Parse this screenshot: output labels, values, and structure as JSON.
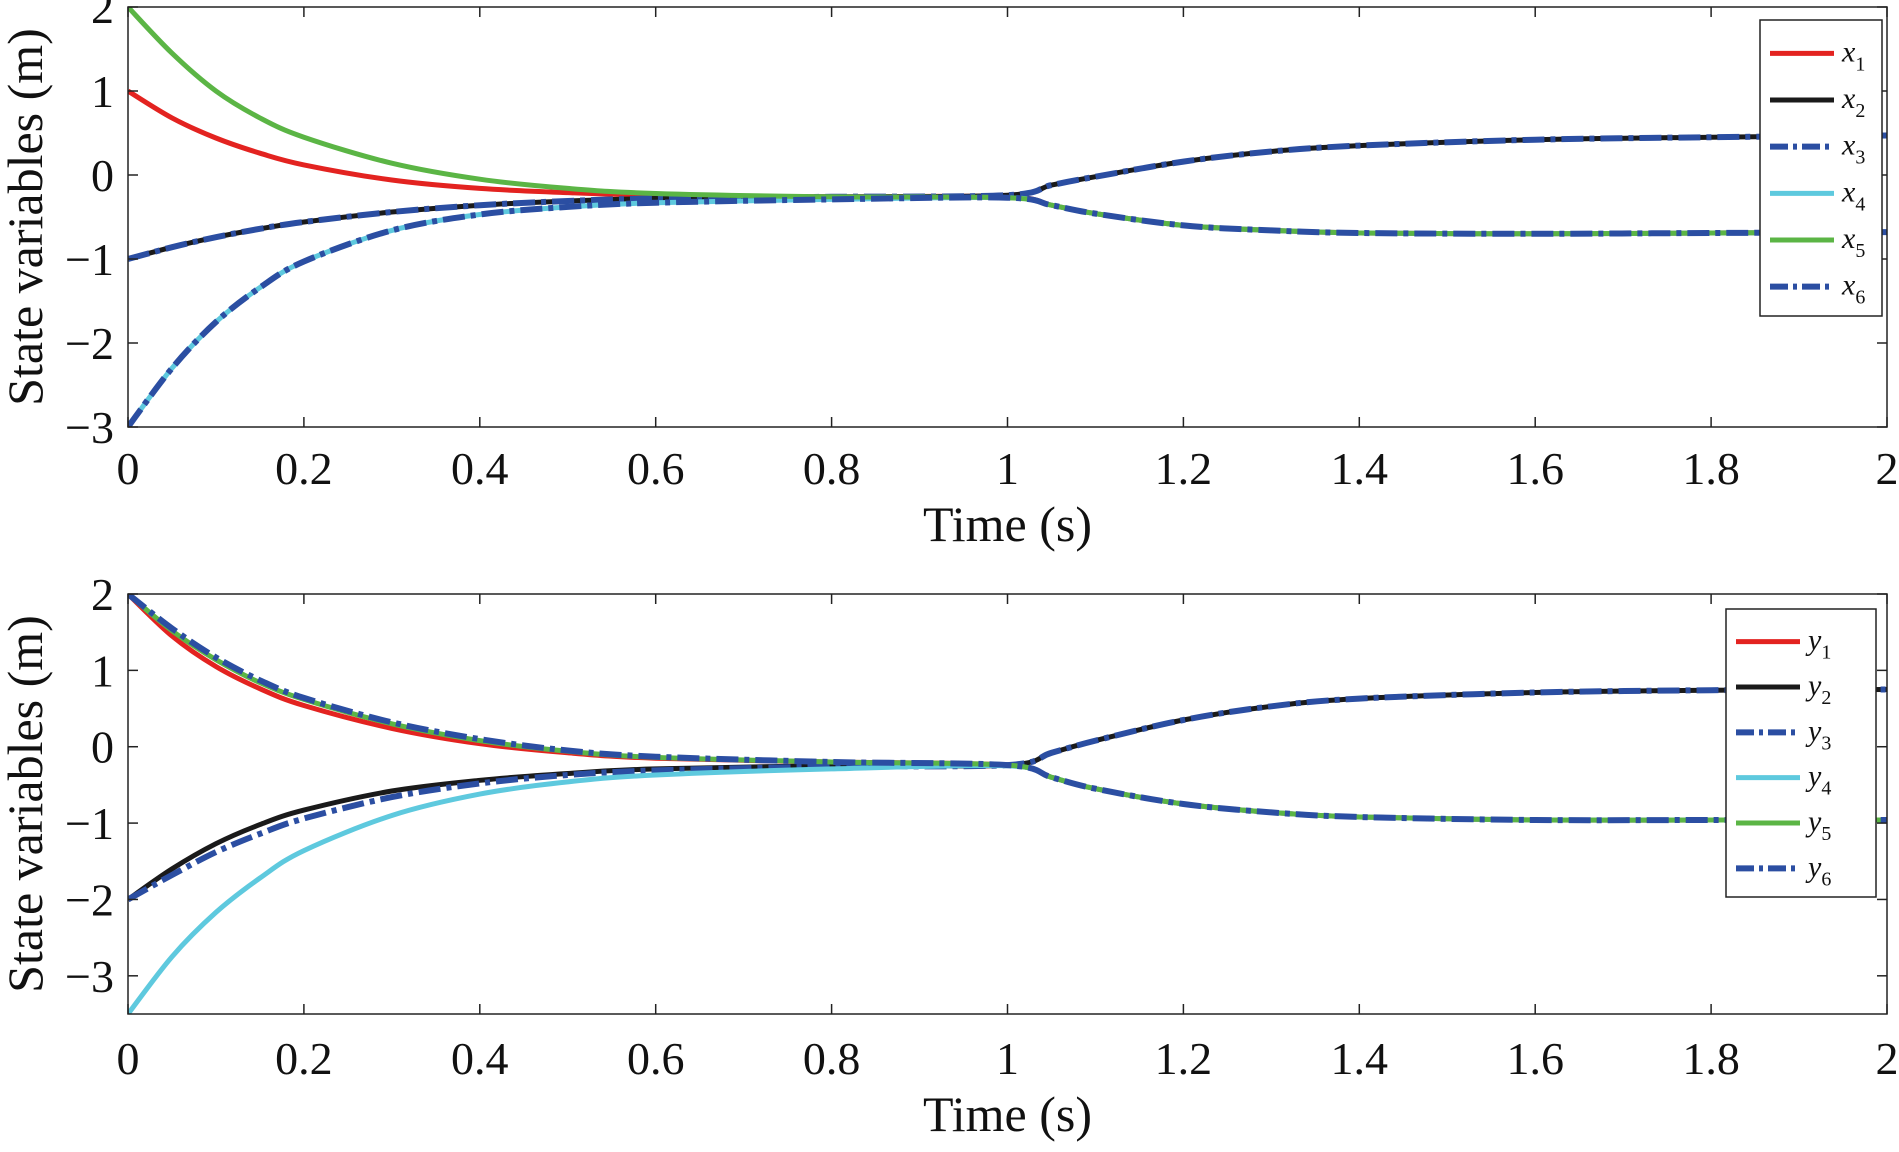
{
  "chart_data": [
    {
      "type": "line",
      "xlabel": "Time (s)",
      "ylabel": "State variables (m)",
      "xlim": [
        0,
        2
      ],
      "ylim": [
        -3,
        2
      ],
      "xticks": [
        "0",
        "0.2",
        "0.4",
        "0.6",
        "0.8",
        "1",
        "1.2",
        "1.4",
        "1.6",
        "1.8",
        "2"
      ],
      "yticks": [
        "2",
        "1",
        "0",
        "−1",
        "−2",
        "−3"
      ],
      "grid": false,
      "legend": "top-right",
      "series": [
        {
          "name": "x",
          "sub": "1",
          "color": "#e32320",
          "style": "solid",
          "x": [
            0,
            0.05,
            0.1,
            0.15,
            0.2,
            0.3,
            0.4,
            0.5,
            0.6,
            0.8,
            1.0,
            1.05,
            1.1,
            1.2,
            1.3,
            1.4,
            1.6,
            1.8,
            2.0
          ],
          "y": [
            1.0,
            0.68,
            0.44,
            0.26,
            0.12,
            -0.06,
            -0.16,
            -0.21,
            -0.24,
            -0.26,
            -0.26,
            -0.36,
            -0.46,
            -0.6,
            -0.66,
            -0.69,
            -0.7,
            -0.69,
            -0.68
          ]
        },
        {
          "name": "x",
          "sub": "2",
          "color": "#1a1a1a",
          "style": "solid",
          "x": [
            0,
            0.05,
            0.1,
            0.15,
            0.2,
            0.3,
            0.4,
            0.5,
            0.6,
            0.8,
            1.0,
            1.05,
            1.1,
            1.2,
            1.3,
            1.4,
            1.6,
            1.8,
            2.0
          ],
          "y": [
            -1.0,
            -0.86,
            -0.74,
            -0.64,
            -0.56,
            -0.44,
            -0.36,
            -0.31,
            -0.28,
            -0.26,
            -0.24,
            -0.12,
            -0.02,
            0.16,
            0.28,
            0.35,
            0.42,
            0.45,
            0.47
          ]
        },
        {
          "name": "x",
          "sub": "3",
          "color": "#2b4ea2",
          "style": "dashdot",
          "x": [
            0,
            0.05,
            0.1,
            0.15,
            0.2,
            0.3,
            0.4,
            0.5,
            0.6,
            0.8,
            1.0,
            1.05,
            1.1,
            1.2,
            1.3,
            1.4,
            1.6,
            1.8,
            2.0
          ],
          "y": [
            -1.0,
            -0.86,
            -0.74,
            -0.64,
            -0.56,
            -0.44,
            -0.36,
            -0.31,
            -0.28,
            -0.26,
            -0.24,
            -0.12,
            -0.02,
            0.16,
            0.28,
            0.35,
            0.42,
            0.45,
            0.47
          ]
        },
        {
          "name": "x",
          "sub": "4",
          "color": "#5ec9de",
          "style": "solid",
          "x": [
            0,
            0.05,
            0.1,
            0.15,
            0.2,
            0.3,
            0.4,
            0.5,
            0.6,
            0.8,
            1.0,
            1.05,
            1.1,
            1.2,
            1.3,
            1.4,
            1.6,
            1.8,
            2.0
          ],
          "y": [
            -3.0,
            -2.3,
            -1.75,
            -1.34,
            -1.03,
            -0.66,
            -0.47,
            -0.38,
            -0.33,
            -0.29,
            -0.27,
            -0.36,
            -0.46,
            -0.6,
            -0.66,
            -0.69,
            -0.7,
            -0.69,
            -0.68
          ]
        },
        {
          "name": "x",
          "sub": "5",
          "color": "#5bb545",
          "style": "solid",
          "x": [
            0,
            0.05,
            0.1,
            0.15,
            0.2,
            0.3,
            0.4,
            0.5,
            0.6,
            0.8,
            1.0,
            1.05,
            1.1,
            1.2,
            1.3,
            1.4,
            1.6,
            1.8,
            2.0
          ],
          "y": [
            2.0,
            1.45,
            1.0,
            0.68,
            0.45,
            0.14,
            -0.05,
            -0.16,
            -0.22,
            -0.26,
            -0.27,
            -0.36,
            -0.46,
            -0.6,
            -0.66,
            -0.69,
            -0.7,
            -0.69,
            -0.68
          ]
        },
        {
          "name": "x",
          "sub": "6",
          "color": "#2b4ea2",
          "style": "dashdot",
          "x": [
            0,
            0.05,
            0.1,
            0.15,
            0.2,
            0.3,
            0.4,
            0.5,
            0.6,
            0.8,
            1.0,
            1.05,
            1.1,
            1.2,
            1.3,
            1.4,
            1.6,
            1.8,
            2.0
          ],
          "y": [
            -3.0,
            -2.3,
            -1.75,
            -1.34,
            -1.03,
            -0.66,
            -0.47,
            -0.38,
            -0.33,
            -0.29,
            -0.27,
            -0.36,
            -0.46,
            -0.6,
            -0.66,
            -0.69,
            -0.7,
            -0.69,
            -0.68
          ]
        }
      ]
    },
    {
      "type": "line",
      "xlabel": "Time (s)",
      "ylabel": "State variables (m)",
      "xlim": [
        0,
        2
      ],
      "ylim": [
        -3.5,
        2
      ],
      "xticks": [
        "0",
        "0.2",
        "0.4",
        "0.6",
        "0.8",
        "1",
        "1.2",
        "1.4",
        "1.6",
        "1.8",
        "2"
      ],
      "yticks": [
        "2",
        "1",
        "0",
        "−1",
        "−2",
        "−3"
      ],
      "ytick_values": [
        2,
        1,
        0,
        -1,
        -2,
        -3
      ],
      "grid": false,
      "legend": "top-right",
      "series": [
        {
          "name": "y",
          "sub": "1",
          "color": "#e32320",
          "style": "solid",
          "x": [
            0,
            0.05,
            0.1,
            0.15,
            0.2,
            0.3,
            0.4,
            0.5,
            0.6,
            0.8,
            1.0,
            1.05,
            1.1,
            1.2,
            1.3,
            1.4,
            1.6,
            1.8,
            2.0
          ],
          "y": [
            2.0,
            1.45,
            1.05,
            0.76,
            0.54,
            0.24,
            0.04,
            -0.08,
            -0.15,
            -0.2,
            -0.24,
            -0.4,
            -0.55,
            -0.75,
            -0.86,
            -0.92,
            -0.96,
            -0.96,
            -0.96
          ]
        },
        {
          "name": "y",
          "sub": "2",
          "color": "#1a1a1a",
          "style": "solid",
          "x": [
            0,
            0.05,
            0.1,
            0.15,
            0.2,
            0.3,
            0.4,
            0.5,
            0.6,
            0.8,
            1.0,
            1.05,
            1.1,
            1.2,
            1.3,
            1.4,
            1.6,
            1.8,
            2.0
          ],
          "y": [
            -2.0,
            -1.6,
            -1.27,
            -1.02,
            -0.83,
            -0.58,
            -0.44,
            -0.35,
            -0.29,
            -0.25,
            -0.24,
            -0.08,
            0.08,
            0.35,
            0.53,
            0.63,
            0.71,
            0.74,
            0.75
          ]
        },
        {
          "name": "y",
          "sub": "3",
          "color": "#2b4ea2",
          "style": "dashdot",
          "x": [
            0,
            0.05,
            0.1,
            0.15,
            0.2,
            0.3,
            0.4,
            0.5,
            0.6,
            0.8,
            1.0,
            1.05,
            1.1,
            1.2,
            1.3,
            1.4,
            1.6,
            1.8,
            2.0
          ],
          "y": [
            -2.0,
            -1.68,
            -1.38,
            -1.14,
            -0.94,
            -0.66,
            -0.48,
            -0.37,
            -0.31,
            -0.26,
            -0.24,
            -0.08,
            0.08,
            0.35,
            0.53,
            0.63,
            0.71,
            0.74,
            0.75
          ]
        },
        {
          "name": "y",
          "sub": "4",
          "color": "#5ec9de",
          "style": "solid",
          "x": [
            0,
            0.05,
            0.1,
            0.15,
            0.2,
            0.3,
            0.4,
            0.5,
            0.6,
            0.8,
            1.0,
            1.05,
            1.1,
            1.2,
            1.3,
            1.4,
            1.6,
            1.8,
            2.0
          ],
          "y": [
            -3.5,
            -2.75,
            -2.17,
            -1.72,
            -1.36,
            -0.9,
            -0.62,
            -0.46,
            -0.37,
            -0.29,
            -0.25,
            -0.4,
            -0.55,
            -0.75,
            -0.86,
            -0.92,
            -0.96,
            -0.96,
            -0.96
          ]
        },
        {
          "name": "y",
          "sub": "5",
          "color": "#5bb545",
          "style": "solid",
          "x": [
            0,
            0.05,
            0.1,
            0.15,
            0.2,
            0.3,
            0.4,
            0.5,
            0.6,
            0.8,
            1.0,
            1.05,
            1.1,
            1.2,
            1.3,
            1.4,
            1.6,
            1.8,
            2.0
          ],
          "y": [
            2.0,
            1.52,
            1.14,
            0.84,
            0.62,
            0.3,
            0.08,
            -0.06,
            -0.14,
            -0.2,
            -0.24,
            -0.4,
            -0.55,
            -0.75,
            -0.86,
            -0.92,
            -0.96,
            -0.96,
            -0.96
          ]
        },
        {
          "name": "y",
          "sub": "6",
          "color": "#2b4ea2",
          "style": "dashdot",
          "x": [
            0,
            0.05,
            0.1,
            0.15,
            0.2,
            0.3,
            0.4,
            0.5,
            0.6,
            0.8,
            1.0,
            1.05,
            1.1,
            1.2,
            1.3,
            1.4,
            1.6,
            1.8,
            2.0
          ],
          "y": [
            2.0,
            1.55,
            1.17,
            0.87,
            0.64,
            0.32,
            0.1,
            -0.05,
            -0.13,
            -0.2,
            -0.24,
            -0.4,
            -0.55,
            -0.75,
            -0.86,
            -0.92,
            -0.96,
            -0.96,
            -0.96
          ]
        }
      ]
    }
  ]
}
